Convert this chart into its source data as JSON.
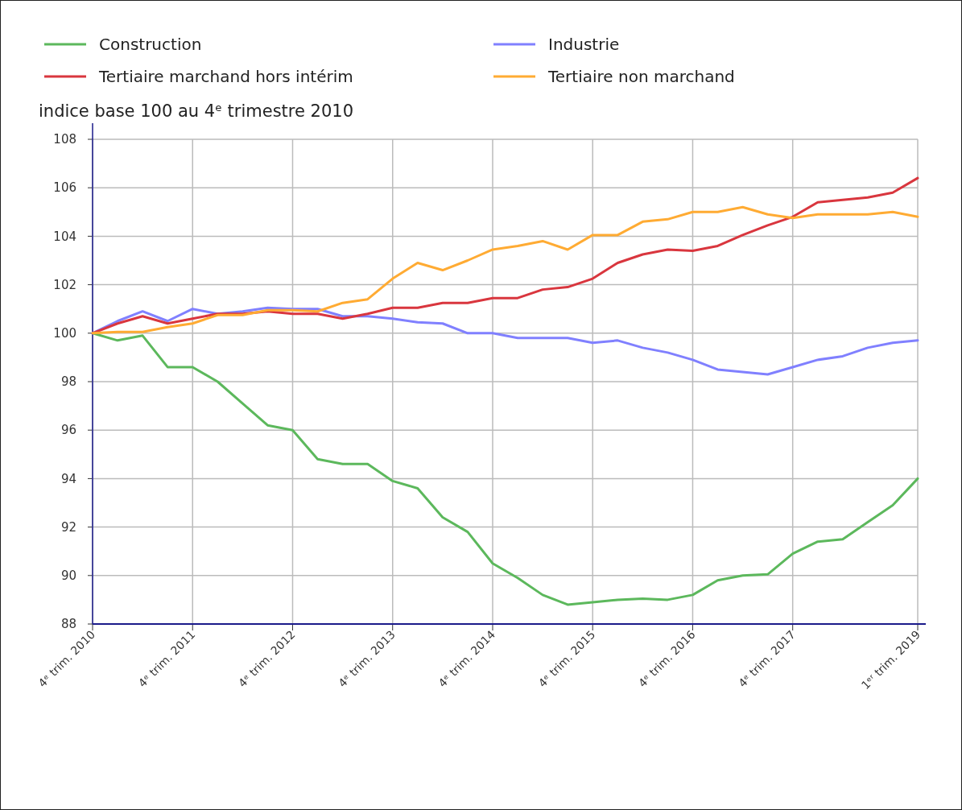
{
  "chart_data": {
    "type": "line",
    "ylabel": "indice base 100 au 4ᵉ trimestre 2010",
    "categories": [
      "4ᵉ trim. 2010",
      null,
      null,
      null,
      "4ᵉ trim. 2011",
      null,
      null,
      null,
      "4ᵉ trim. 2012",
      null,
      null,
      null,
      "4ᵉ trim. 2013",
      null,
      null,
      null,
      "4ᵉ trim. 2014",
      null,
      null,
      null,
      "4ᵉ trim. 2015",
      null,
      null,
      null,
      "4ᵉ trim. 2016",
      null,
      null,
      null,
      "4ᵉ trim. 2017",
      null,
      null,
      null,
      null,
      "1ᵉʳ trim. 2019"
    ],
    "series": [
      {
        "name": "Construction",
        "color": "#5cb85c",
        "values": [
          100,
          99.7,
          99.9,
          98.6,
          98.6,
          98.0,
          97.1,
          96.2,
          96.0,
          94.8,
          94.6,
          94.6,
          93.9,
          93.6,
          92.4,
          91.8,
          90.5,
          89.9,
          89.2,
          88.8,
          88.9,
          89.0,
          89.05,
          89.0,
          89.2,
          89.8,
          90.0,
          90.05,
          90.9,
          91.4,
          91.5,
          92.2,
          92.9,
          94.0
        ]
      },
      {
        "name": "Industrie",
        "color": "#8080ff",
        "values": [
          100,
          100.5,
          100.9,
          100.5,
          101.0,
          100.8,
          100.9,
          101.05,
          101.0,
          101.0,
          100.7,
          100.7,
          100.6,
          100.45,
          100.4,
          100.0,
          100.0,
          99.8,
          99.8,
          99.8,
          99.6,
          99.7,
          99.4,
          99.2,
          98.9,
          98.5,
          98.4,
          98.3,
          98.6,
          98.9,
          99.05,
          99.4,
          99.6,
          99.7
        ]
      },
      {
        "name": "Tertiaire marchand hors intérim",
        "color": "#d9363e",
        "values": [
          100,
          100.4,
          100.7,
          100.4,
          100.6,
          100.8,
          100.8,
          100.9,
          100.8,
          100.8,
          100.6,
          100.8,
          101.05,
          101.05,
          101.25,
          101.25,
          101.45,
          101.45,
          101.8,
          101.9,
          102.25,
          102.9,
          103.25,
          103.45,
          103.4,
          103.6,
          104.05,
          104.45,
          104.8,
          105.4,
          105.5,
          105.6,
          105.8,
          106.4
        ]
      },
      {
        "name": "Tertiaire non marchand",
        "color": "#ffab33",
        "values": [
          100,
          100.05,
          100.05,
          100.25,
          100.4,
          100.75,
          100.75,
          100.95,
          100.95,
          100.9,
          101.25,
          101.4,
          102.25,
          102.9,
          102.6,
          103.0,
          103.45,
          103.6,
          103.8,
          103.45,
          104.05,
          104.05,
          104.6,
          104.7,
          105.0,
          105.0,
          105.2,
          104.9,
          104.75,
          104.9,
          104.9,
          104.9,
          105.0,
          104.8
        ]
      }
    ],
    "ylim": [
      88,
      108
    ],
    "yticks": [
      88,
      90,
      92,
      94,
      96,
      98,
      100,
      102,
      104,
      106,
      108
    ],
    "grid": true,
    "legend": "top",
    "line_style": "solid",
    "marker": "none"
  }
}
